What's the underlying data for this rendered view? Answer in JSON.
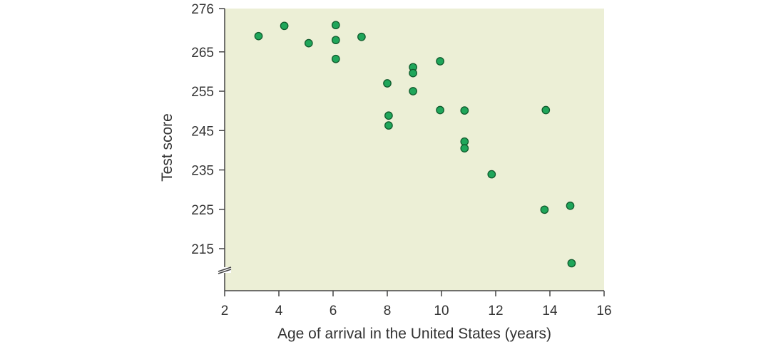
{
  "chart_data": {
    "type": "scatter",
    "title": "",
    "xlabel": "Age of arrival in the United States (years)",
    "ylabel": "Test score",
    "xlim": [
      2,
      16
    ],
    "ylim": [
      215,
      276
    ],
    "x_ticks": [
      2,
      4,
      6,
      8,
      10,
      12,
      14,
      16
    ],
    "y_ticks": [
      215,
      225,
      235,
      245,
      255,
      265,
      276
    ],
    "y_axis_break": true,
    "grid": false,
    "colors": {
      "plot_background": "#ecefd6",
      "marker_fill": "#1fa65a",
      "marker_stroke": "#0f5a2c",
      "axis": "#444444"
    },
    "series": [
      {
        "points": [
          {
            "x": 3.25,
            "y": 269.0
          },
          {
            "x": 4.2,
            "y": 271.6
          },
          {
            "x": 5.1,
            "y": 267.2
          },
          {
            "x": 6.1,
            "y": 271.8
          },
          {
            "x": 6.1,
            "y": 268.0
          },
          {
            "x": 6.1,
            "y": 263.2
          },
          {
            "x": 7.05,
            "y": 268.8
          },
          {
            "x": 8.0,
            "y": 257.0
          },
          {
            "x": 8.05,
            "y": 248.8
          },
          {
            "x": 8.05,
            "y": 246.3
          },
          {
            "x": 8.95,
            "y": 261.1
          },
          {
            "x": 8.95,
            "y": 259.6
          },
          {
            "x": 8.95,
            "y": 255.0
          },
          {
            "x": 9.95,
            "y": 262.6
          },
          {
            "x": 9.95,
            "y": 250.2
          },
          {
            "x": 10.85,
            "y": 250.1
          },
          {
            "x": 10.85,
            "y": 242.2
          },
          {
            "x": 10.85,
            "y": 240.5
          },
          {
            "x": 11.85,
            "y": 233.9
          },
          {
            "x": 13.85,
            "y": 250.2
          },
          {
            "x": 13.8,
            "y": 224.9
          },
          {
            "x": 14.75,
            "y": 225.9
          },
          {
            "x": 14.8,
            "y": 211.3
          }
        ]
      }
    ]
  }
}
